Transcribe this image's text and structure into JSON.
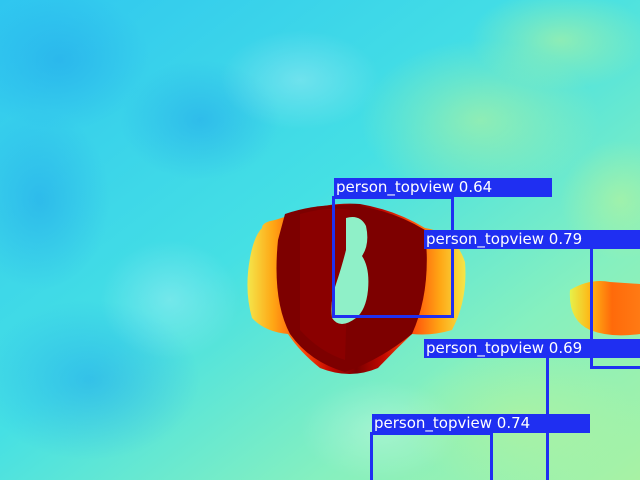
{
  "image": {
    "description_colormap": "jet",
    "palette": {
      "background_cyan": "#3ad6ea",
      "background_green": "#9cf2b2",
      "warm_yellow": "#f4e64a",
      "warm_orange": "#ff6a14",
      "hot_red": "#c40a00",
      "core_darkred": "#7d0000",
      "box_blue": "#1f2ff2"
    }
  },
  "detections": [
    {
      "label": "person_topview",
      "score": "0.64",
      "text": "person_topview 0.64"
    },
    {
      "label": "person_topview",
      "score": "0.79",
      "text": "person_topview 0.79"
    },
    {
      "label": "person_topview",
      "score": "0.69",
      "text": "person_topview 0.69"
    },
    {
      "label": "person_topview",
      "score": "0.74",
      "text": "person_topview 0.74"
    }
  ]
}
